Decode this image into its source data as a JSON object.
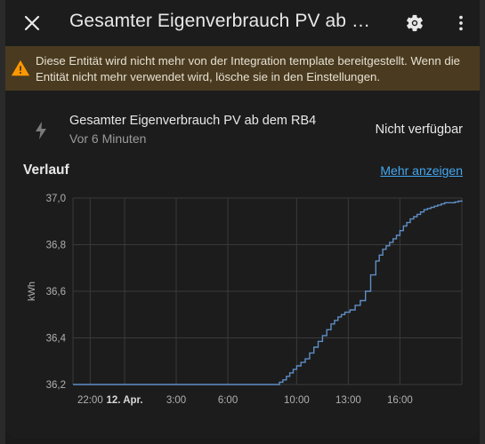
{
  "dialog": {
    "title": "Gesamter Eigenverbrauch PV ab d...",
    "close_icon": "close-icon",
    "settings_icon": "gear-icon",
    "more_icon": "more-vertical-icon"
  },
  "warning": {
    "text": "Diese Entität wird nicht mehr von der Integration template bereitgestellt. Wenn die Entität nicht mehr verwendet wird, lösche sie in den Einstellungen.",
    "icon": "warning-icon",
    "color": "#ff9800"
  },
  "entity": {
    "icon": "flash-icon",
    "name": "Gesamter Eigenverbrauch PV ab dem RB4",
    "last_changed": "Vor 6 Minuten",
    "state": "Nicht verfügbar"
  },
  "history": {
    "label": "Verlauf",
    "more_link": "Mehr anzeigen"
  },
  "chart_data": {
    "type": "line",
    "ylabel": "kWh",
    "ylim": [
      36.2,
      37.0
    ],
    "y_ticks": [
      "37,0",
      "36,8",
      "36,6",
      "36,4",
      "36,2"
    ],
    "x_tick_labels": [
      "22:00",
      "12. Apr.",
      "3:00",
      "6:00",
      "10:00",
      "13:00",
      "16:00"
    ],
    "x_hours": [
      -2,
      0,
      3,
      6,
      10,
      13,
      16
    ],
    "xlim_hours": [
      -3,
      19.6
    ],
    "line_color": "#5e8ec6",
    "grid": true,
    "series": [
      {
        "x_hours": [
          -3,
          8.8,
          9.2,
          9.6,
          10.0,
          10.5,
          11.0,
          11.5,
          12.0,
          12.4,
          12.8,
          13.1,
          13.4,
          13.7,
          14.0,
          14.3,
          14.6,
          15.0,
          15.4,
          15.8,
          16.2,
          16.6,
          17.0,
          17.4,
          17.8,
          18.2,
          18.6,
          19.0,
          19.6
        ],
        "values": [
          36.2,
          36.2,
          36.22,
          36.25,
          36.28,
          36.31,
          36.36,
          36.41,
          36.46,
          36.49,
          36.51,
          36.52,
          36.54,
          36.56,
          36.6,
          36.67,
          36.73,
          36.78,
          36.81,
          36.84,
          36.88,
          36.91,
          36.93,
          36.95,
          36.96,
          36.97,
          36.98,
          36.98,
          36.99
        ]
      }
    ]
  }
}
